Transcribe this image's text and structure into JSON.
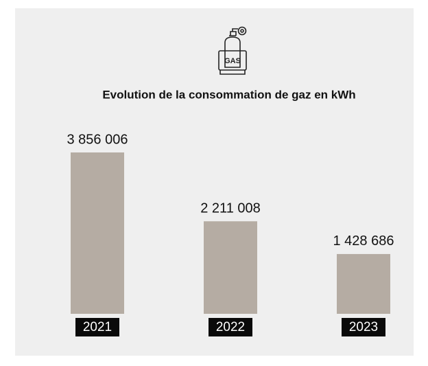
{
  "chart_data": {
    "type": "bar",
    "icon_label": "GAS",
    "title": "Evolution de la consommation de gaz en kWh",
    "categories": [
      "2021",
      "2022",
      "2023"
    ],
    "values": [
      3856006,
      2211008,
      1428686
    ],
    "value_labels": [
      "3 856 006",
      "2 211 008",
      "1 428 686"
    ],
    "color": "#b5aca3"
  }
}
